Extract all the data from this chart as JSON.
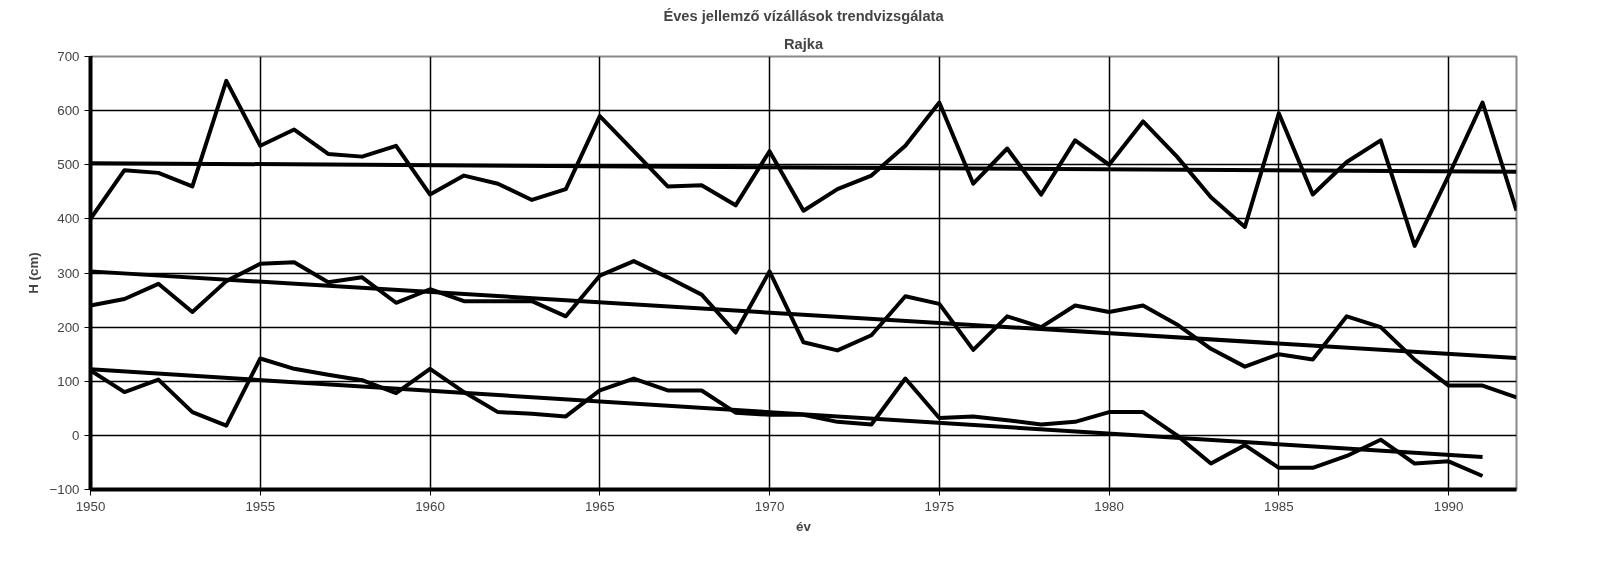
{
  "chart_data": {
    "type": "line",
    "title": "Éves jellemző vízállások trendvizsgálata",
    "subtitle": "Rajka",
    "xlabel": "év",
    "ylabel": "H (cm)",
    "xlim": [
      1950,
      1992
    ],
    "xticks": [
      1950,
      1955,
      1960,
      1965,
      1970,
      1975,
      1980,
      1985,
      1990
    ],
    "ylim": [
      -100,
      700
    ],
    "yticks": [
      -100,
      0,
      100,
      200,
      300,
      400,
      500,
      600,
      700
    ],
    "grid": true,
    "marker": "none",
    "line_style": "solid",
    "series": [
      {
        "color": "#000000",
        "x": [
          1950,
          1951,
          1952,
          1953,
          1954,
          1955,
          1956,
          1957,
          1958,
          1959,
          1960,
          1961,
          1962,
          1963,
          1964,
          1965,
          1966,
          1967,
          1968,
          1969,
          1970,
          1971,
          1972,
          1973,
          1974,
          1975,
          1976,
          1977,
          1978,
          1979,
          1980,
          1981,
          1982,
          1983,
          1984,
          1985,
          1986,
          1987,
          1988,
          1989,
          1990,
          1991,
          1992
        ],
        "values": [
          400,
          490,
          485,
          460,
          655,
          535,
          565,
          520,
          515,
          535,
          445,
          480,
          465,
          435,
          455,
          590,
          525,
          460,
          462,
          425,
          525,
          415,
          455,
          480,
          535,
          615,
          465,
          530,
          445,
          545,
          500,
          580,
          515,
          440,
          385,
          595,
          445,
          505,
          545,
          350,
          480,
          615,
          415
        ]
      },
      {
        "color": "#000000",
        "x": [
          1950,
          1992
        ],
        "values": [
          503,
          487
        ]
      },
      {
        "color": "#000000",
        "x": [
          1950,
          1951,
          1952,
          1953,
          1954,
          1955,
          1956,
          1957,
          1958,
          1959,
          1960,
          1961,
          1962,
          1963,
          1964,
          1965,
          1966,
          1967,
          1968,
          1969,
          1970,
          1971,
          1972,
          1973,
          1974,
          1975,
          1976,
          1977,
          1978,
          1979,
          1980,
          1981,
          1982,
          1983,
          1984,
          1985,
          1986,
          1987,
          1988,
          1989,
          1990,
          1991,
          1992
        ],
        "values": [
          240,
          252,
          280,
          228,
          285,
          317,
          320,
          283,
          292,
          245,
          270,
          248,
          248,
          248,
          220,
          295,
          322,
          292,
          260,
          190,
          303,
          172,
          157,
          185,
          257,
          243,
          158,
          220,
          200,
          240,
          228,
          240,
          205,
          160,
          127,
          150,
          140,
          220,
          200,
          140,
          92,
          92,
          70
        ]
      },
      {
        "color": "#000000",
        "x": [
          1950,
          1992
        ],
        "values": [
          303,
          143
        ]
      },
      {
        "color": "#000000",
        "x": [
          1950,
          1951,
          1952,
          1953,
          1954,
          1955,
          1956,
          1957,
          1958,
          1959,
          1960,
          1961,
          1962,
          1963,
          1964,
          1965,
          1966,
          1967,
          1968,
          1969,
          1970,
          1971,
          1972,
          1973,
          1974,
          1975,
          1976,
          1977,
          1978,
          1979,
          1980,
          1981,
          1982,
          1983,
          1984,
          1985,
          1986,
          1987,
          1988,
          1989,
          1990,
          1991
        ],
        "values": [
          120,
          80,
          103,
          43,
          18,
          142,
          123,
          112,
          102,
          78,
          123,
          80,
          43,
          40,
          35,
          83,
          105,
          83,
          83,
          42,
          38,
          38,
          25,
          20,
          105,
          32,
          35,
          28,
          20,
          25,
          43,
          43,
          0,
          -52,
          -18,
          -60,
          -60,
          -38,
          -8,
          -52,
          -48,
          -75
        ]
      },
      {
        "color": "#000000",
        "x": [
          1950,
          1991
        ],
        "values": [
          122,
          -40
        ]
      }
    ]
  }
}
